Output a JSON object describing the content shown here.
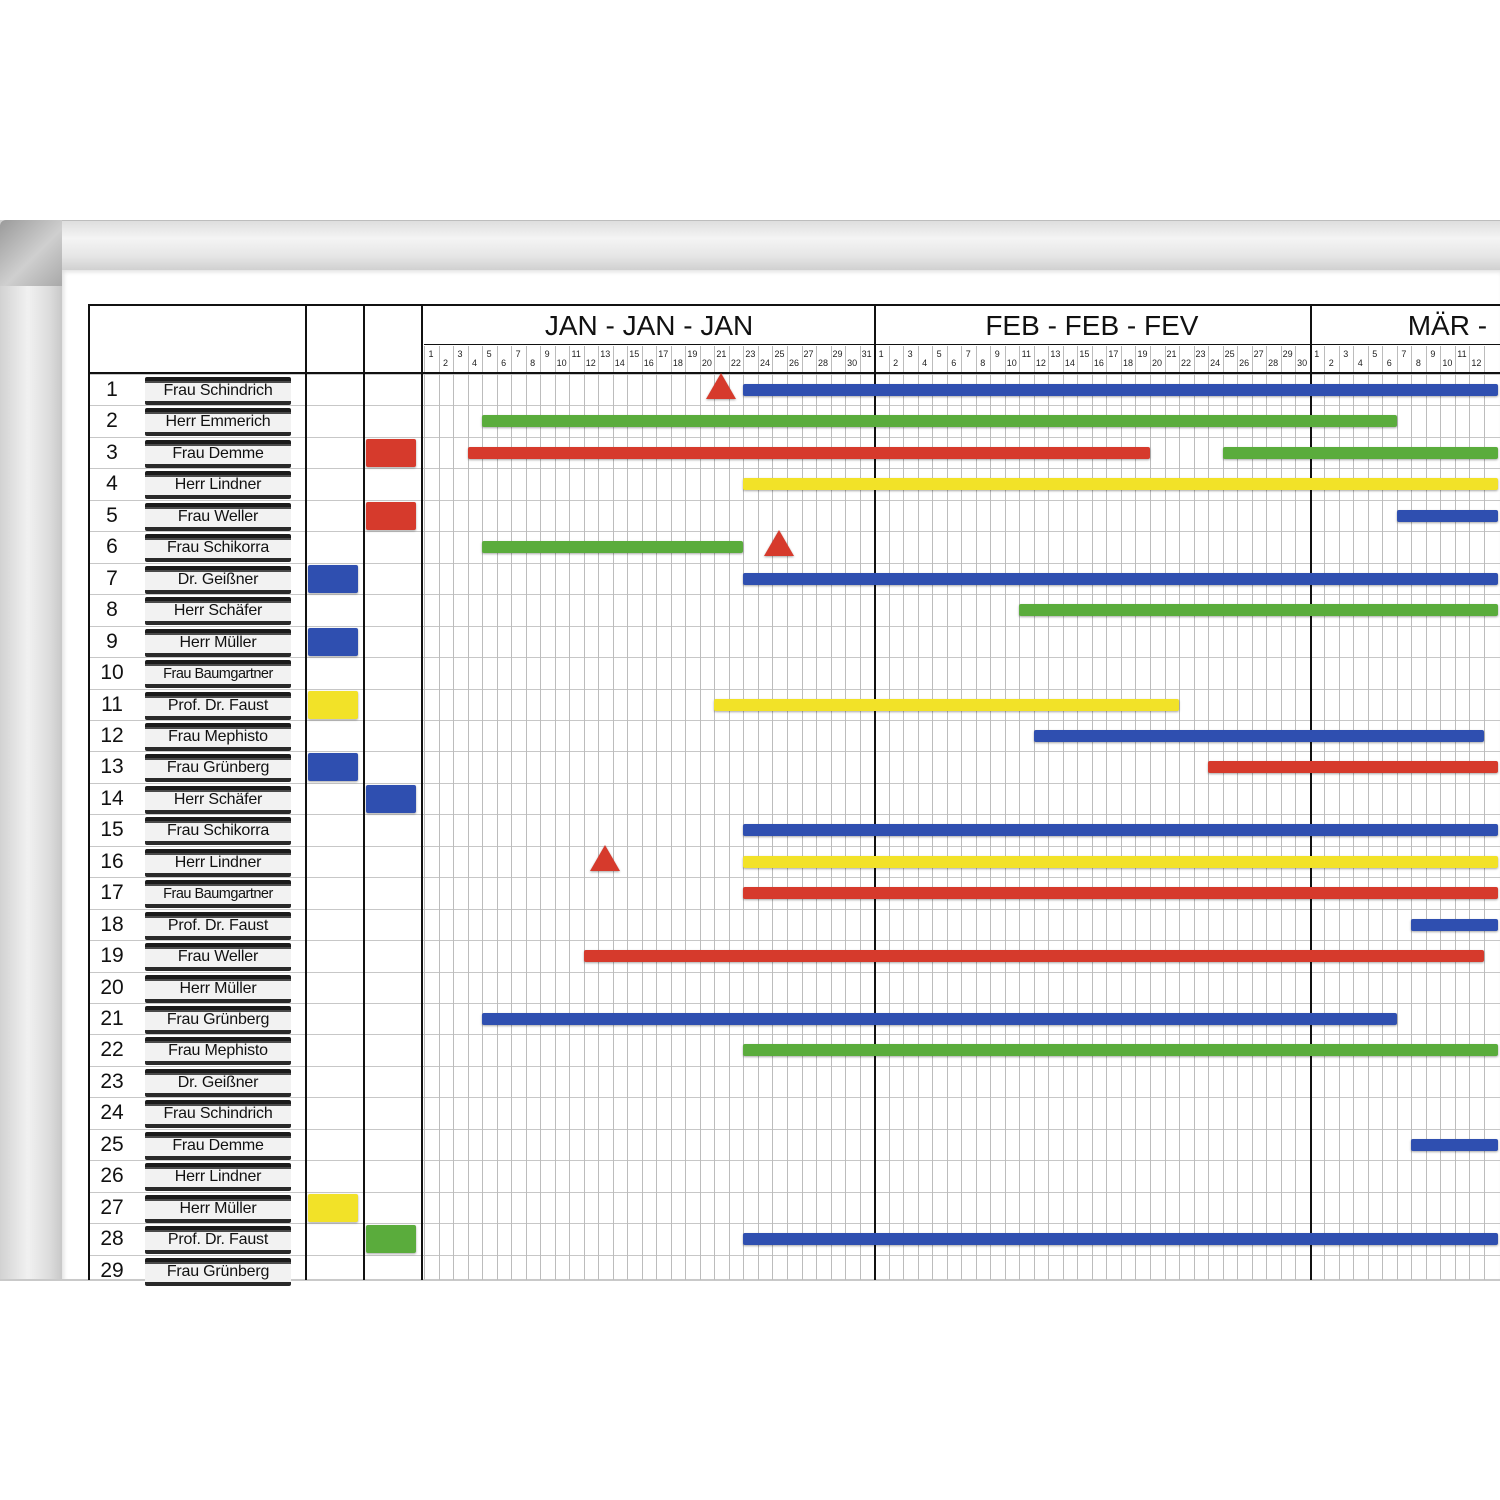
{
  "months": [
    "JAN - JAN - JAN",
    "FEB - FEB - FEV",
    "MÄR -"
  ],
  "days_jan": 31,
  "days_feb": 30,
  "days_mar_visible": 12,
  "colors": {
    "blue": "#2f4fb0",
    "green": "#5aac3c",
    "red": "#d63a2c",
    "yellow": "#f2e228"
  },
  "rows": [
    {
      "num": "1",
      "name": "Frau Schindrich"
    },
    {
      "num": "2",
      "name": "Herr Emmerich"
    },
    {
      "num": "3",
      "name": "Frau Demme"
    },
    {
      "num": "4",
      "name": "Herr Lindner"
    },
    {
      "num": "5",
      "name": "Frau Weller"
    },
    {
      "num": "6",
      "name": "Frau Schikorra"
    },
    {
      "num": "7",
      "name": "Dr. Geißner"
    },
    {
      "num": "8",
      "name": "Herr Schäfer"
    },
    {
      "num": "9",
      "name": "Herr Müller"
    },
    {
      "num": "10",
      "name": "Frau Baumgartner"
    },
    {
      "num": "11",
      "name": "Prof. Dr. Faust"
    },
    {
      "num": "12",
      "name": "Frau Mephisto"
    },
    {
      "num": "13",
      "name": "Frau Grünberg"
    },
    {
      "num": "14",
      "name": "Herr Schäfer"
    },
    {
      "num": "15",
      "name": "Frau Schikorra"
    },
    {
      "num": "16",
      "name": "Herr Lindner"
    },
    {
      "num": "17",
      "name": "Frau Baumgartner"
    },
    {
      "num": "18",
      "name": "Prof. Dr. Faust"
    },
    {
      "num": "19",
      "name": "Frau Weller"
    },
    {
      "num": "20",
      "name": "Herr Müller"
    },
    {
      "num": "21",
      "name": "Frau Grünberg"
    },
    {
      "num": "22",
      "name": "Frau Mephisto"
    },
    {
      "num": "23",
      "name": "Dr. Geißner"
    },
    {
      "num": "24",
      "name": "Frau Schindrich"
    },
    {
      "num": "25",
      "name": "Frau Demme"
    },
    {
      "num": "26",
      "name": "Herr Lindner"
    },
    {
      "num": "27",
      "name": "Herr Müller"
    },
    {
      "num": "28",
      "name": "Prof. Dr. Faust"
    },
    {
      "num": "29",
      "name": "Frau Grünberg"
    }
  ],
  "column1_markers": [
    {
      "row": 7,
      "color": "blue"
    },
    {
      "row": 9,
      "color": "blue"
    },
    {
      "row": 11,
      "color": "yellow"
    },
    {
      "row": 13,
      "color": "blue"
    },
    {
      "row": 27,
      "color": "yellow"
    }
  ],
  "column2_markers": [
    {
      "row": 3,
      "color": "red"
    },
    {
      "row": 5,
      "color": "red"
    },
    {
      "row": 14,
      "color": "blue"
    },
    {
      "row": 28,
      "color": "green"
    }
  ],
  "bars": [
    {
      "row": 1,
      "color": "blue",
      "start_day": 23,
      "end_day": 74
    },
    {
      "row": 2,
      "color": "green",
      "start_day": 5,
      "end_day": 67
    },
    {
      "row": 3,
      "color": "red",
      "start_day": 4,
      "end_day": 50
    },
    {
      "row": 3,
      "color": "green",
      "start_day": 56,
      "end_day": 74
    },
    {
      "row": 4,
      "color": "yellow",
      "start_day": 23,
      "end_day": 74
    },
    {
      "row": 5,
      "color": "blue",
      "start_day": 68,
      "end_day": 74
    },
    {
      "row": 6,
      "color": "green",
      "start_day": 5,
      "end_day": 22
    },
    {
      "row": 7,
      "color": "blue",
      "start_day": 23,
      "end_day": 74
    },
    {
      "row": 8,
      "color": "green",
      "start_day": 42,
      "end_day": 74
    },
    {
      "row": 11,
      "color": "yellow",
      "start_day": 21,
      "end_day": 52
    },
    {
      "row": 12,
      "color": "blue",
      "start_day": 43,
      "end_day": 73
    },
    {
      "row": 13,
      "color": "red",
      "start_day": 55,
      "end_day": 74
    },
    {
      "row": 15,
      "color": "blue",
      "start_day": 23,
      "end_day": 74
    },
    {
      "row": 16,
      "color": "yellow",
      "start_day": 23,
      "end_day": 74
    },
    {
      "row": 17,
      "color": "red",
      "start_day": 23,
      "end_day": 74
    },
    {
      "row": 18,
      "color": "blue",
      "start_day": 69,
      "end_day": 74
    },
    {
      "row": 19,
      "color": "red",
      "start_day": 12,
      "end_day": 73
    },
    {
      "row": 21,
      "color": "blue",
      "start_day": 5,
      "end_day": 67
    },
    {
      "row": 22,
      "color": "green",
      "start_day": 23,
      "end_day": 74
    },
    {
      "row": 25,
      "color": "blue",
      "start_day": 69,
      "end_day": 74
    },
    {
      "row": 28,
      "color": "blue",
      "start_day": 23,
      "end_day": 74
    }
  ],
  "triangles": [
    {
      "row": 1,
      "day": 21
    },
    {
      "row": 6,
      "day": 25
    },
    {
      "row": 16,
      "day": 13
    }
  ]
}
